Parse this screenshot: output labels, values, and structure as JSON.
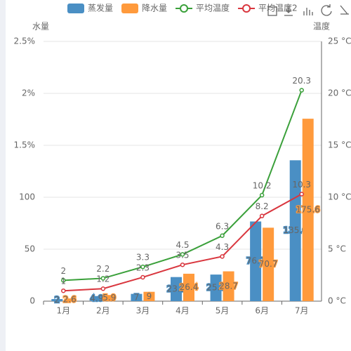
{
  "chart_data": {
    "type": "bar",
    "categories": [
      "1月",
      "2月",
      "3月",
      "4月",
      "5月",
      "6月",
      "7月"
    ],
    "y_axis_label": "水量",
    "y2_axis_label": "温度",
    "ylim": [
      0,
      250
    ],
    "yticks": [
      0,
      50,
      100,
      {
        "value": 150,
        "label": "1.5%"
      },
      {
        "value": 200,
        "label": "2%"
      },
      {
        "value": 250,
        "label": "2.5%"
      }
    ],
    "y2lim": [
      0,
      25
    ],
    "y2ticks": [
      {
        "value": 0,
        "label": "0 °C"
      },
      {
        "value": 5,
        "label": "5 °C"
      },
      {
        "value": 10,
        "label": "10 °C"
      },
      {
        "value": 15,
        "label": "15 °C"
      },
      {
        "value": 20,
        "label": "20 °C"
      },
      {
        "value": 25,
        "label": "25 °C"
      }
    ],
    "grid": true,
    "legend_position": "top",
    "series": [
      {
        "name": "蒸发量",
        "type": "bar",
        "color": "#4a8fc4",
        "values": [
          2,
          4.9,
          7,
          23.2,
          25.6,
          76.7,
          135.6
        ]
      },
      {
        "name": "降水量",
        "type": "bar",
        "color": "#ff9a3c",
        "values": [
          2.6,
          5.9,
          9,
          26.4,
          28.7,
          70.7,
          175.6
        ]
      },
      {
        "name": "平均温度",
        "type": "line",
        "axis": "y2",
        "color": "#3aa03a",
        "values": [
          2,
          2.2,
          3.3,
          4.5,
          6.3,
          10.2,
          20.3
        ]
      },
      {
        "name": "平均温度2",
        "type": "line",
        "axis": "y2",
        "color": "#d9363e",
        "values": [
          1,
          1.2,
          2.3,
          3.5,
          4.3,
          8.2,
          10.3
        ]
      }
    ]
  }
}
